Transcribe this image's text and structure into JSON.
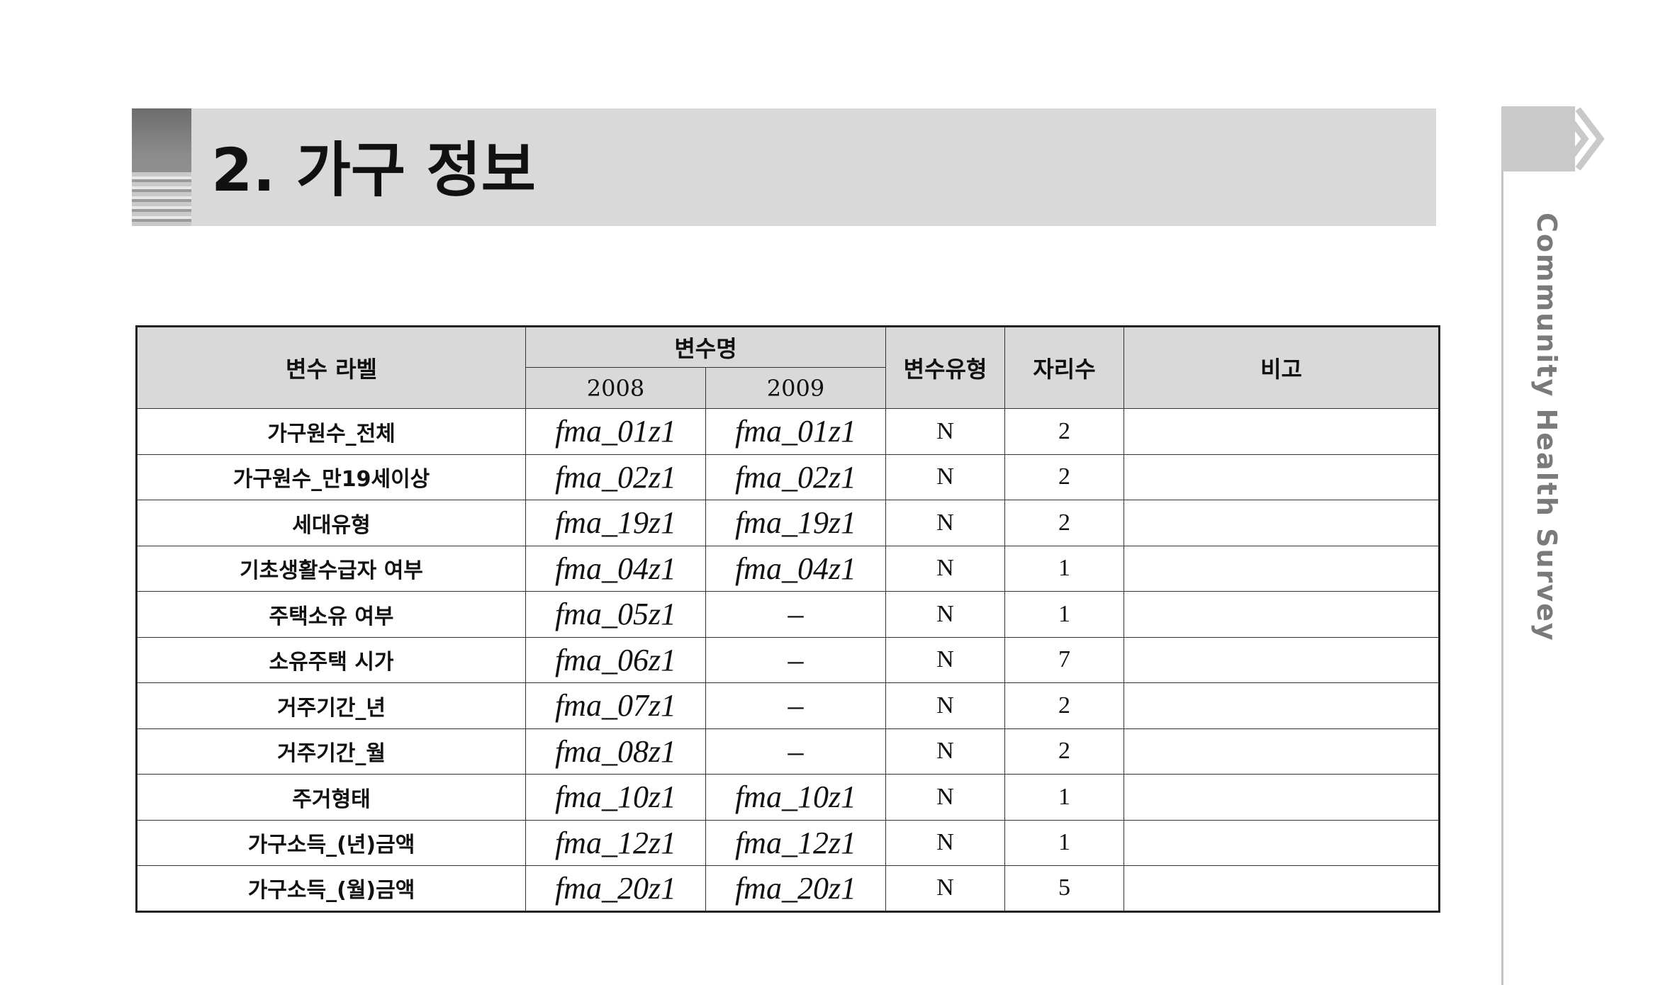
{
  "title": "2.  가구 정보",
  "sidebar": {
    "text": "Community Health Survey"
  },
  "table": {
    "headers": {
      "label": "변수 라벨",
      "varname": "변수명",
      "year1": "2008",
      "year2": "2009",
      "type": "변수유형",
      "digits": "자리수",
      "note": "비고"
    },
    "rows": [
      {
        "label": "가구원수_전체",
        "v2008": "fma_01z1",
        "v2009": "fma_01z1",
        "type": "N",
        "digits": "2",
        "note": ""
      },
      {
        "label": "가구원수_만19세이상",
        "v2008": "fma_02z1",
        "v2009": "fma_02z1",
        "type": "N",
        "digits": "2",
        "note": ""
      },
      {
        "label": "세대유형",
        "v2008": "fma_19z1",
        "v2009": "fma_19z1",
        "type": "N",
        "digits": "2",
        "note": ""
      },
      {
        "label": "기초생활수급자 여부",
        "v2008": "fma_04z1",
        "v2009": "fma_04z1",
        "type": "N",
        "digits": "1",
        "note": ""
      },
      {
        "label": "주택소유 여부",
        "v2008": "fma_05z1",
        "v2009": "–",
        "type": "N",
        "digits": "1",
        "note": ""
      },
      {
        "label": "소유주택 시가",
        "v2008": "fma_06z1",
        "v2009": "–",
        "type": "N",
        "digits": "7",
        "note": ""
      },
      {
        "label": "거주기간_년",
        "v2008": "fma_07z1",
        "v2009": "–",
        "type": "N",
        "digits": "2",
        "note": ""
      },
      {
        "label": "거주기간_월",
        "v2008": "fma_08z1",
        "v2009": "–",
        "type": "N",
        "digits": "2",
        "note": ""
      },
      {
        "label": "주거형태",
        "v2008": "fma_10z1",
        "v2009": "fma_10z1",
        "type": "N",
        "digits": "1",
        "note": ""
      },
      {
        "label": "가구소득_(년)금액",
        "v2008": "fma_12z1",
        "v2009": "fma_12z1",
        "type": "N",
        "digits": "1",
        "note": ""
      },
      {
        "label": "가구소득_(월)금액",
        "v2008": "fma_20z1",
        "v2009": "fma_20z1",
        "type": "N",
        "digits": "5",
        "note": ""
      }
    ]
  }
}
